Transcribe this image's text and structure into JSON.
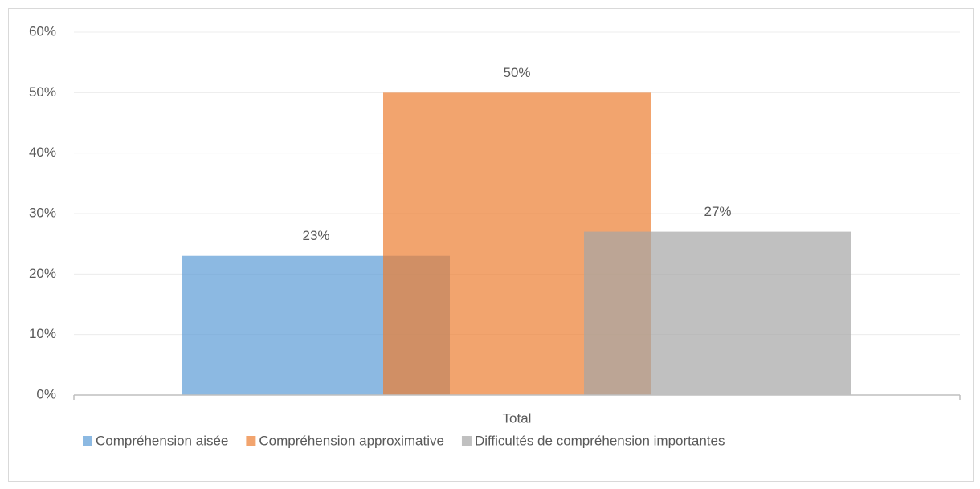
{
  "chart_data": {
    "type": "bar",
    "categories": [
      "Total"
    ],
    "series": [
      {
        "name": "Compréhension aisée",
        "color": "#5b9bd5",
        "values": [
          23
        ],
        "value_labels": [
          "23%"
        ]
      },
      {
        "name": "Compréhension approximative",
        "color": "#ed7d31",
        "values": [
          50
        ],
        "value_labels": [
          "50%"
        ]
      },
      {
        "name": "Difficultés de compréhension importantes",
        "color": "#a5a5a5",
        "values": [
          27
        ],
        "value_labels": [
          "27%"
        ]
      }
    ],
    "ylim": [
      0,
      60
    ],
    "yticks": [
      {
        "value": 0,
        "label": "0%"
      },
      {
        "value": 10,
        "label": "10%"
      },
      {
        "value": 20,
        "label": "20%"
      },
      {
        "value": 30,
        "label": "30%"
      },
      {
        "value": 40,
        "label": "40%"
      },
      {
        "value": 50,
        "label": "50%"
      },
      {
        "value": 60,
        "label": "60%"
      }
    ],
    "grid": true,
    "legend": "bottom"
  }
}
